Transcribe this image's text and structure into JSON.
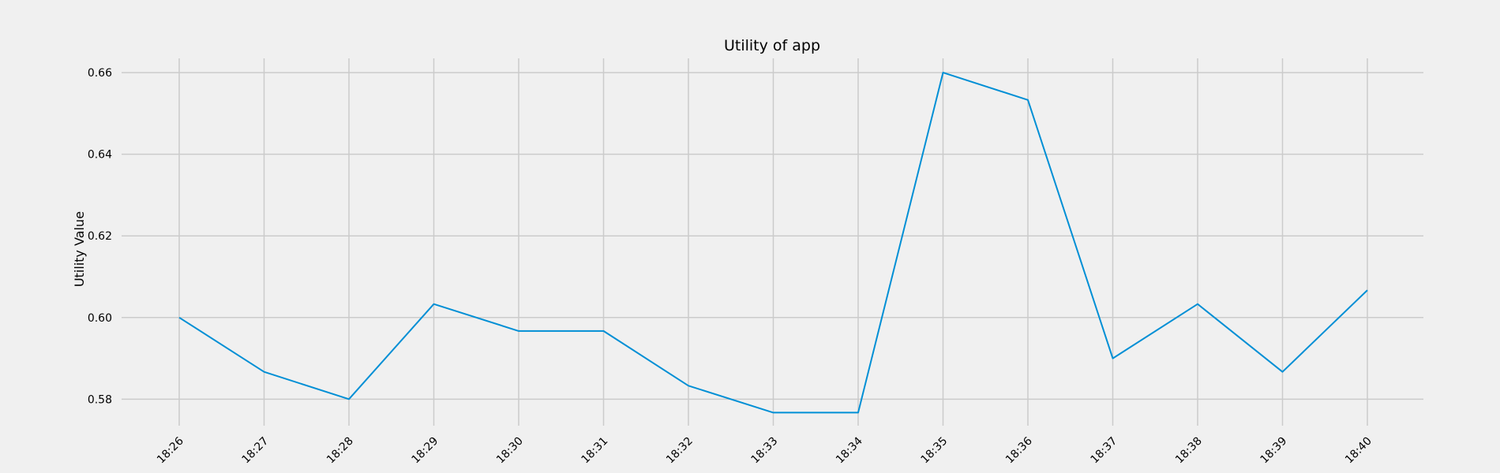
{
  "chart_data": {
    "type": "line",
    "title": "Utility of app",
    "xlabel": "",
    "ylabel": "Utility Value",
    "x": [
      "18:26",
      "18:27",
      "18:28",
      "18:29",
      "18:30",
      "18:31",
      "18:32",
      "18:33",
      "18:34",
      "18:35",
      "18:36",
      "18:37",
      "18:38",
      "18:39",
      "18:40"
    ],
    "series": [
      {
        "values": [
          0.6,
          0.5867,
          0.58,
          0.6033,
          0.5967,
          0.5967,
          0.5833,
          0.5767,
          0.5767,
          0.66,
          0.6533,
          0.59,
          0.6033,
          0.5867,
          0.6067
        ]
      }
    ],
    "ylim": [
      0.5735,
      0.6635
    ],
    "yticks": [
      "0.58",
      "0.60",
      "0.62",
      "0.64",
      "0.66"
    ],
    "grid": true,
    "line_color": "#008fd5",
    "background_color": "#f0f0f0",
    "grid_color": "#cbcbcb"
  }
}
